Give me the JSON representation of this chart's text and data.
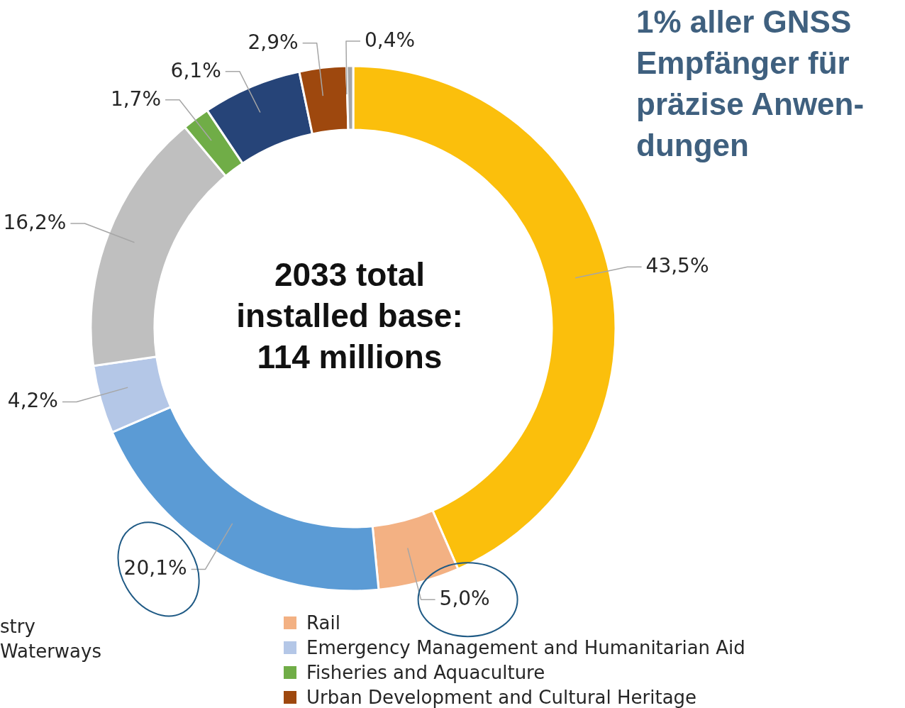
{
  "chart_data": {
    "type": "donut",
    "categories": [
      null,
      "Rail",
      null,
      "Emergency Management and Humanitarian Aid",
      null,
      "Fisheries and Aquaculture",
      null,
      "Urban Development and Cultural Heritage",
      null
    ],
    "values": [
      43.5,
      5.0,
      20.1,
      4.2,
      16.2,
      1.7,
      6.1,
      2.9,
      0.4
    ],
    "value_labels": [
      "43,5%",
      "5,0%",
      "20,1%",
      "4,2%",
      "16,2%",
      "1,7%",
      "6,1%",
      "2,9%",
      "0,4%"
    ],
    "colors": [
      "#fbbf0c",
      "#f3b183",
      "#5b9bd5",
      "#b4c7e7",
      "#bfbfbf",
      "#70ad47",
      "#264478",
      "#9e480e",
      "#a5a5a5"
    ],
    "legend": "bottom",
    "annotations": [
      "2033 total installed base: 114 millions",
      "1% aller GNSS Empfänger für präzise Anwen-dungen",
      "stry",
      "Waterways"
    ]
  }
}
